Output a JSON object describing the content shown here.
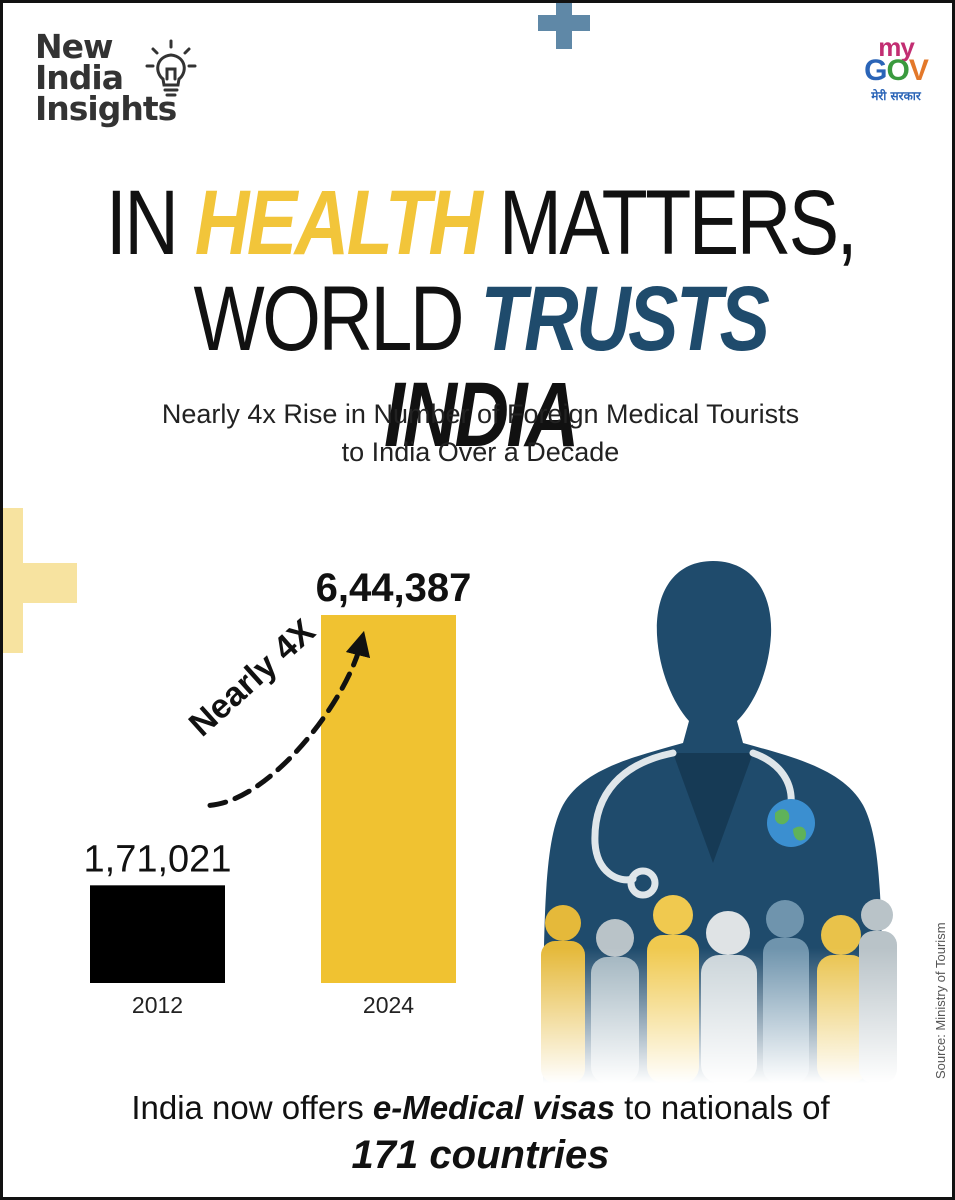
{
  "brand": {
    "line1": "New",
    "line2": "India",
    "line3": "Insights"
  },
  "partner": {
    "my": "my",
    "gov_g": "G",
    "gov_o": "O",
    "gov_v": "V",
    "tagline": "मेरी सरकार"
  },
  "headline": {
    "line1": {
      "a": "IN",
      "b": "HEALTH",
      "c": "MATTERS,"
    },
    "line2": {
      "a": "WORLD",
      "b": "TRUSTS",
      "c": "INDIA"
    }
  },
  "subtitle": {
    "line1": "Nearly 4x Rise in Number of Foreign Medical Tourists",
    "line2": "to India Over a Decade"
  },
  "chart_data": {
    "type": "bar",
    "categories": [
      "2012",
      "2024"
    ],
    "values": [
      171021,
      644387
    ],
    "value_labels": [
      "1,71,021",
      "6,44,387"
    ],
    "bar_colors": [
      "#000000",
      "#f0c231"
    ],
    "annotation": "Nearly 4X",
    "xlabel": "",
    "ylabel": "",
    "grid": false
  },
  "source": "Source: Ministry of Tourism",
  "footer": {
    "pre": "India now offers ",
    "emphasis": "e-Medical visas",
    "post": " to nationals of",
    "line2": "171 countries"
  },
  "colors": {
    "accent_yellow": "#f2c53a",
    "accent_blue": "#1f4b6c",
    "plus_blue": "#5f88a7",
    "plus_yellow": "#f7e3a0"
  },
  "icons": [
    "lightbulb-icon",
    "plus-decoration",
    "doctor-illustration",
    "stethoscope-icon",
    "globe-icon"
  ]
}
